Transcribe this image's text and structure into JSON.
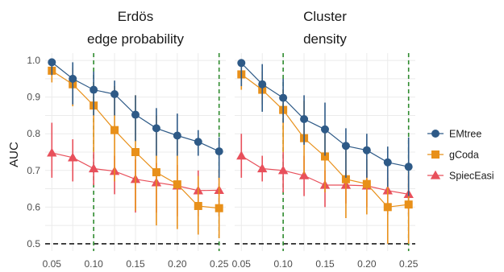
{
  "colors": {
    "EMtree": "#2e5a87",
    "gCoda": "#e8901a",
    "SpiecEasi": "#e8505b",
    "reference_line": "#1a1a1a",
    "vline": "#2e8b2e",
    "grid": "#ebebeb"
  },
  "chart_data": [
    {
      "type": "line",
      "facet_title": [
        "Erdös",
        "edge probability"
      ],
      "ylabel": "AUC",
      "xlabel": "",
      "x": [
        0.05,
        0.075,
        0.1,
        0.125,
        0.15,
        0.175,
        0.2,
        0.225,
        0.25
      ],
      "xticks": [
        0.05,
        0.1,
        0.15,
        0.2,
        0.25
      ],
      "xtick_labels": [
        "0.05",
        "0.10",
        "0.15",
        "0.20",
        "0.25"
      ],
      "yticks": [
        0.5,
        0.6,
        0.7,
        0.8,
        0.9,
        1.0
      ],
      "ytick_labels": [
        "0.5",
        "0.6",
        "0.7",
        "0.8",
        "0.9",
        "1.0"
      ],
      "xlim": [
        0.042,
        0.258
      ],
      "ylim": [
        0.48,
        1.02
      ],
      "grid": true,
      "hline": 0.5,
      "vlines": [
        0.1,
        0.25
      ],
      "series": [
        {
          "name": "EMtree",
          "marker": "circle",
          "values": [
            0.995,
            0.95,
            0.92,
            0.908,
            0.852,
            0.815,
            0.795,
            0.778,
            0.752
          ],
          "lower": [
            0.96,
            0.88,
            0.85,
            0.85,
            0.78,
            0.74,
            0.74,
            0.74,
            0.68
          ],
          "upper": [
            1.0,
            0.995,
            0.97,
            0.945,
            0.905,
            0.87,
            0.855,
            0.81,
            0.79
          ]
        },
        {
          "name": "gCoda",
          "marker": "square",
          "values": [
            0.972,
            0.935,
            0.877,
            0.81,
            0.75,
            0.695,
            0.662,
            0.603,
            0.597
          ],
          "lower": [
            0.94,
            0.875,
            0.75,
            0.67,
            0.59,
            0.55,
            0.54,
            0.525,
            0.515
          ],
          "upper": [
            0.985,
            0.98,
            0.94,
            0.93,
            0.905,
            0.85,
            0.79,
            0.685,
            0.7
          ]
        },
        {
          "name": "SpiecEasi",
          "marker": "triangle",
          "values": [
            0.748,
            0.735,
            0.705,
            0.698,
            0.676,
            0.667,
            0.658,
            0.645,
            0.646
          ],
          "lower": [
            0.68,
            0.67,
            0.66,
            0.635,
            0.585,
            0.585,
            0.575,
            0.575,
            0.575
          ],
          "upper": [
            0.83,
            0.785,
            0.75,
            0.74,
            0.73,
            0.72,
            0.715,
            0.7,
            0.7
          ]
        }
      ]
    },
    {
      "type": "line",
      "facet_title": [
        "Cluster",
        "density"
      ],
      "ylabel": "",
      "xlabel": "",
      "x": [
        0.05,
        0.075,
        0.1,
        0.125,
        0.15,
        0.175,
        0.2,
        0.225,
        0.25
      ],
      "xticks": [
        0.05,
        0.1,
        0.15,
        0.2,
        0.25
      ],
      "xtick_labels": [
        "0.05",
        "0.10",
        "0.15",
        "0.20",
        "0.25"
      ],
      "xlim": [
        0.042,
        0.258
      ],
      "ylim": [
        0.48,
        1.02
      ],
      "grid": true,
      "hline": 0.5,
      "vlines": [
        0.1,
        0.25
      ],
      "series": [
        {
          "name": "EMtree",
          "marker": "circle",
          "values": [
            0.993,
            0.935,
            0.898,
            0.84,
            0.812,
            0.767,
            0.755,
            0.722,
            0.71
          ],
          "lower": [
            0.93,
            0.86,
            0.83,
            0.77,
            0.74,
            0.68,
            0.68,
            0.655,
            0.63
          ],
          "upper": [
            1.0,
            0.99,
            0.95,
            0.905,
            0.885,
            0.815,
            0.8,
            0.765,
            0.79
          ]
        },
        {
          "name": "gCoda",
          "marker": "square",
          "values": [
            0.962,
            0.92,
            0.865,
            0.788,
            0.738,
            0.676,
            0.663,
            0.6,
            0.607
          ],
          "lower": [
            0.92,
            0.88,
            0.75,
            0.69,
            0.64,
            0.57,
            0.58,
            0.5,
            0.5
          ],
          "upper": [
            0.99,
            0.97,
            0.92,
            0.89,
            0.81,
            0.76,
            0.73,
            0.68,
            0.7
          ]
        },
        {
          "name": "SpiecEasi",
          "marker": "triangle",
          "values": [
            0.74,
            0.705,
            0.7,
            0.686,
            0.66,
            0.66,
            0.658,
            0.645,
            0.635
          ],
          "lower": [
            0.68,
            0.67,
            0.64,
            0.63,
            0.6,
            0.61,
            0.6,
            0.58,
            0.58
          ],
          "upper": [
            0.8,
            0.74,
            0.75,
            0.74,
            0.7,
            0.7,
            0.7,
            0.7,
            0.69
          ]
        }
      ]
    }
  ],
  "legend": {
    "position": "right",
    "entries": [
      "EMtree",
      "gCoda",
      "SpiecEasi"
    ]
  }
}
